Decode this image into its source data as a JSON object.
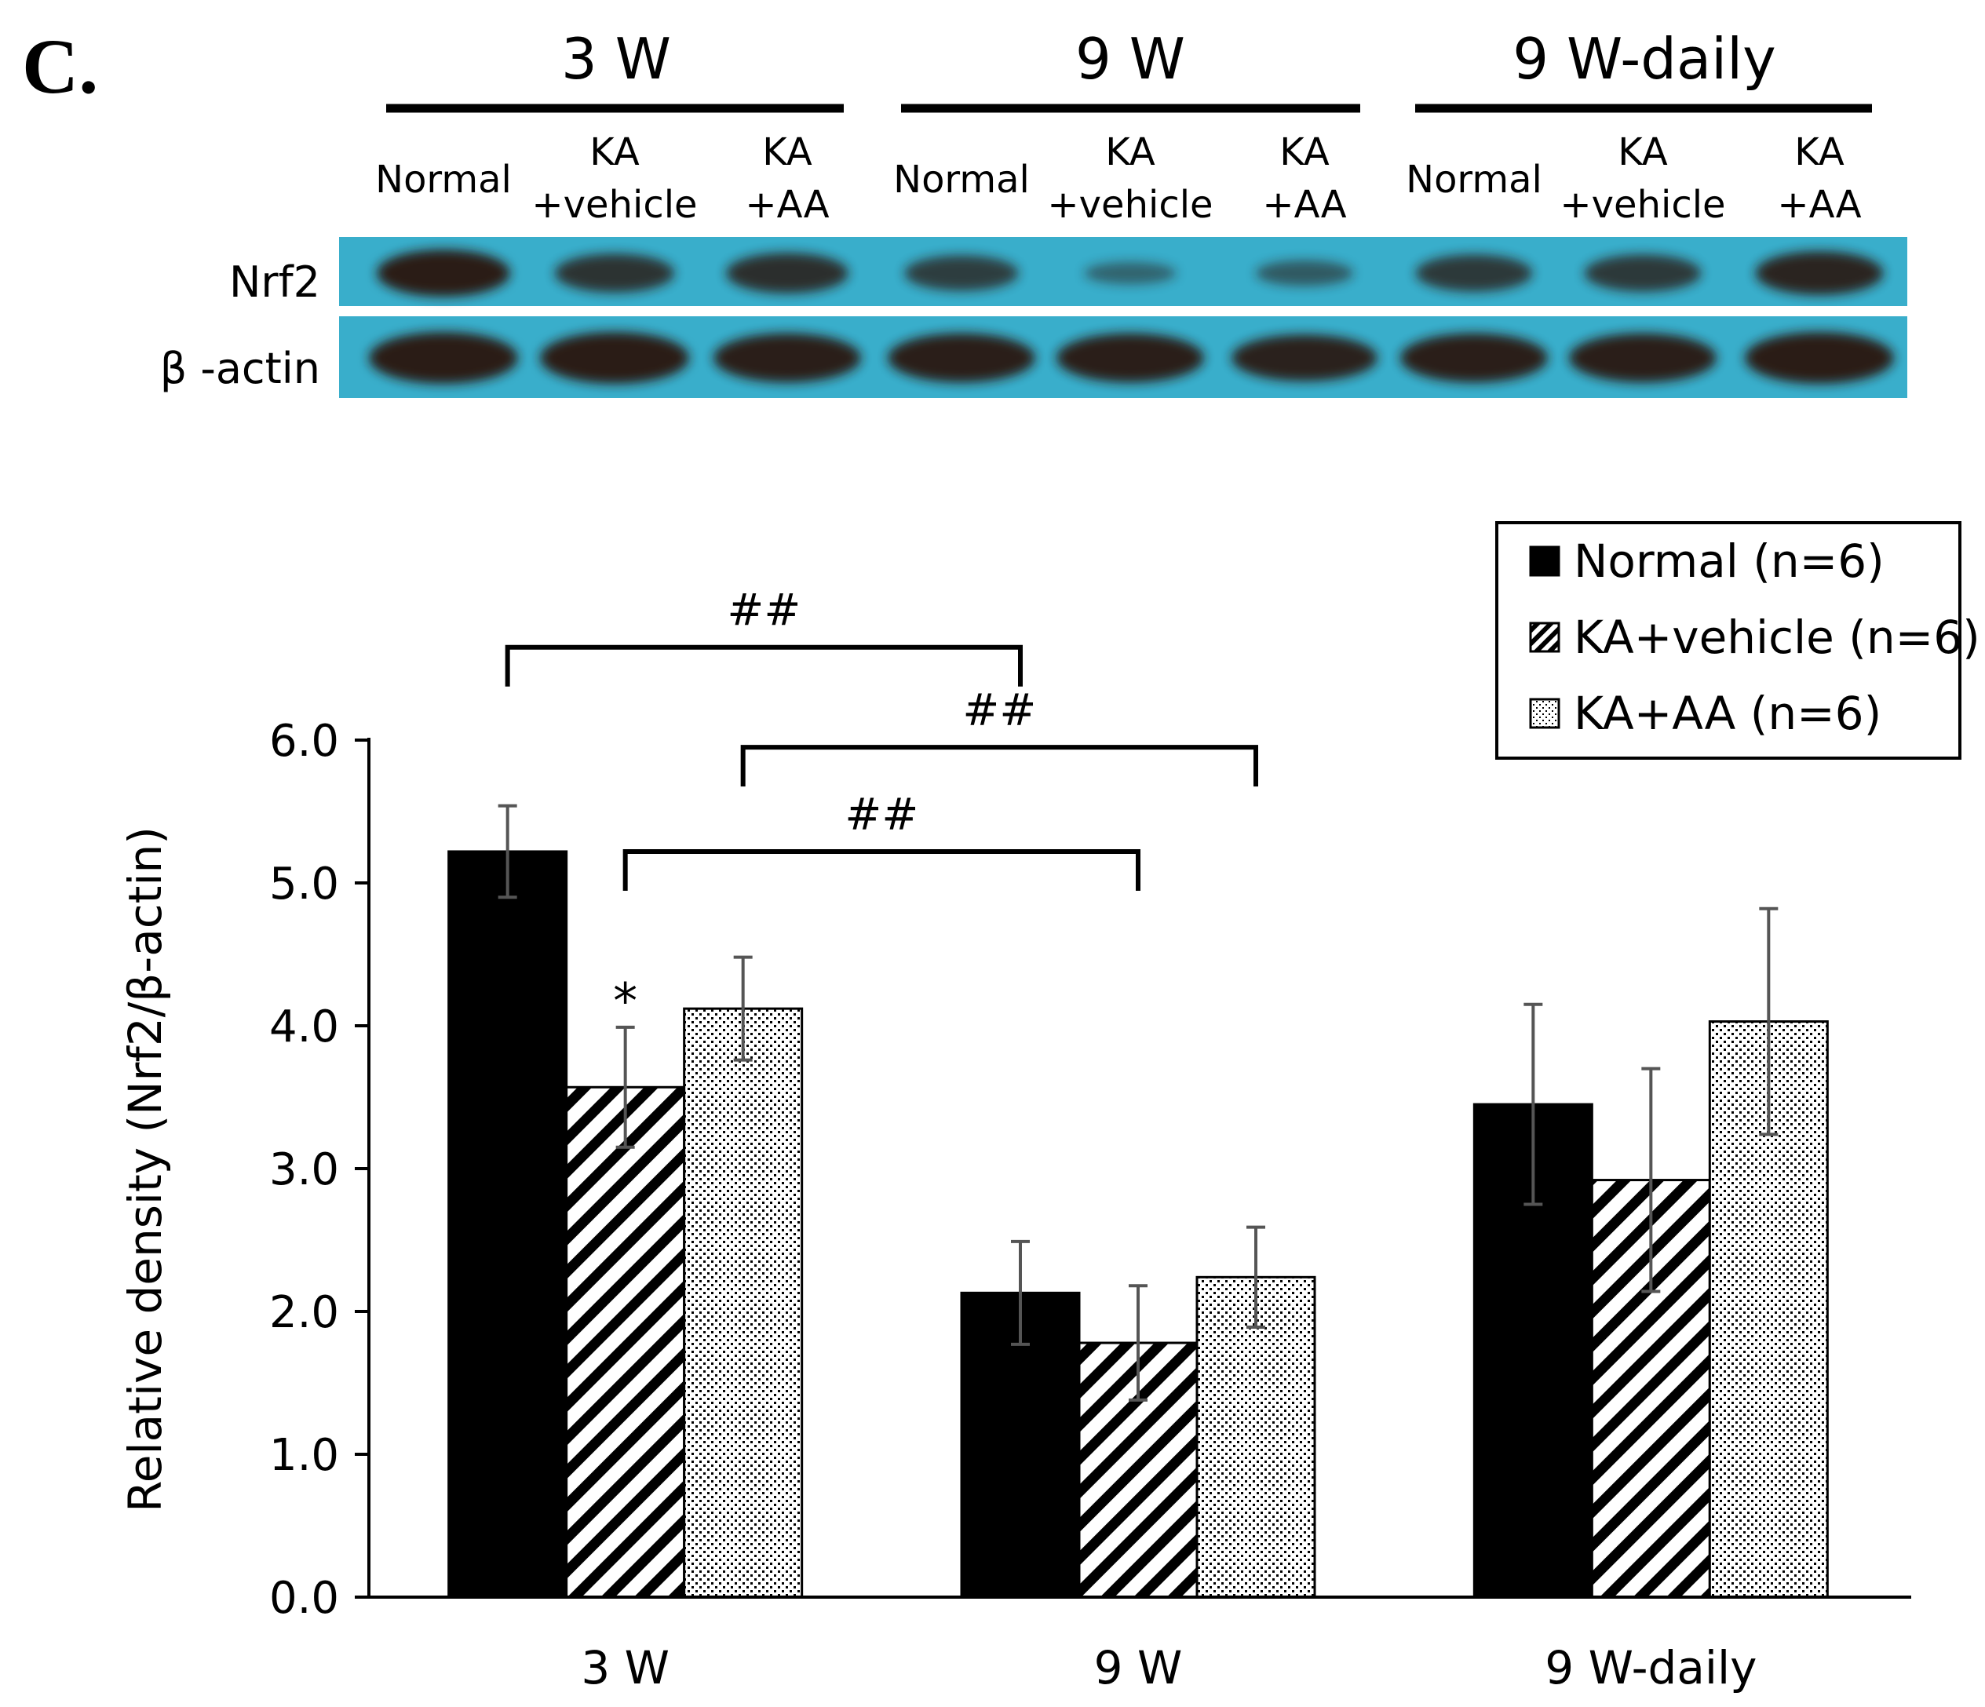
{
  "panel_label": "C.",
  "blot": {
    "groups": [
      "3 W",
      "9 W",
      "9 W-daily"
    ],
    "lanes": [
      {
        "line1": "Normal",
        "line2": ""
      },
      {
        "line1": "KA",
        "line2": "+vehicle"
      },
      {
        "line1": "KA",
        "line2": "+AA"
      },
      {
        "line1": "Normal",
        "line2": ""
      },
      {
        "line1": "KA",
        "line2": "+vehicle"
      },
      {
        "line1": "KA",
        "line2": "+AA"
      },
      {
        "line1": "Normal",
        "line2": ""
      },
      {
        "line1": "KA",
        "line2": "+vehicle"
      },
      {
        "line1": "KA",
        "line2": "+AA"
      }
    ],
    "rows": [
      "Nrf2",
      "β -actin"
    ],
    "background_color": "#39aecb",
    "band_color": "#2a1a16",
    "nrf2_intensity": [
      1.0,
      0.75,
      0.8,
      0.65,
      0.25,
      0.35,
      0.7,
      0.7,
      0.9
    ],
    "actin_intensity": [
      1.0,
      1.0,
      0.95,
      0.95,
      0.95,
      0.9,
      0.95,
      0.95,
      1.0
    ]
  },
  "chart_data": {
    "type": "bar",
    "ylabel": "Relative density (Nrf2/β-actin)",
    "xlabel": "",
    "ylim": [
      0,
      6
    ],
    "yticks": [
      "0.0",
      "1.0",
      "2.0",
      "3.0",
      "4.0",
      "5.0",
      "6.0"
    ],
    "categories": [
      "3 W",
      "9 W",
      "9 W-daily"
    ],
    "series": [
      {
        "name": "Normal (n=6)",
        "pattern": "solid",
        "values": [
          5.22,
          2.13,
          3.45
        ],
        "errors": [
          0.32,
          0.36,
          0.7
        ]
      },
      {
        "name": "KA+vehicle (n=6)",
        "pattern": "hatch",
        "values": [
          3.57,
          1.78,
          2.92
        ],
        "errors": [
          0.42,
          0.4,
          0.78
        ]
      },
      {
        "name": "KA+AA (n=6)",
        "pattern": "dots",
        "values": [
          4.12,
          2.24,
          4.03
        ],
        "errors": [
          0.36,
          0.35,
          0.79
        ]
      }
    ],
    "annotations": {
      "star": {
        "text": "*",
        "series": 1,
        "category": 0
      },
      "brackets": [
        {
          "text": "##",
          "from": {
            "series": 0,
            "category": 0
          },
          "to": {
            "series": 0,
            "category": 1
          },
          "level": 6.65
        },
        {
          "text": "##",
          "from": {
            "series": 2,
            "category": 0
          },
          "to": {
            "series": 2,
            "category": 1
          },
          "level": 5.95
        },
        {
          "text": "##",
          "from": {
            "series": 1,
            "category": 0
          },
          "to": {
            "series": 1,
            "category": 1
          },
          "level": 5.22
        }
      ]
    },
    "legend_position": "top-right"
  }
}
